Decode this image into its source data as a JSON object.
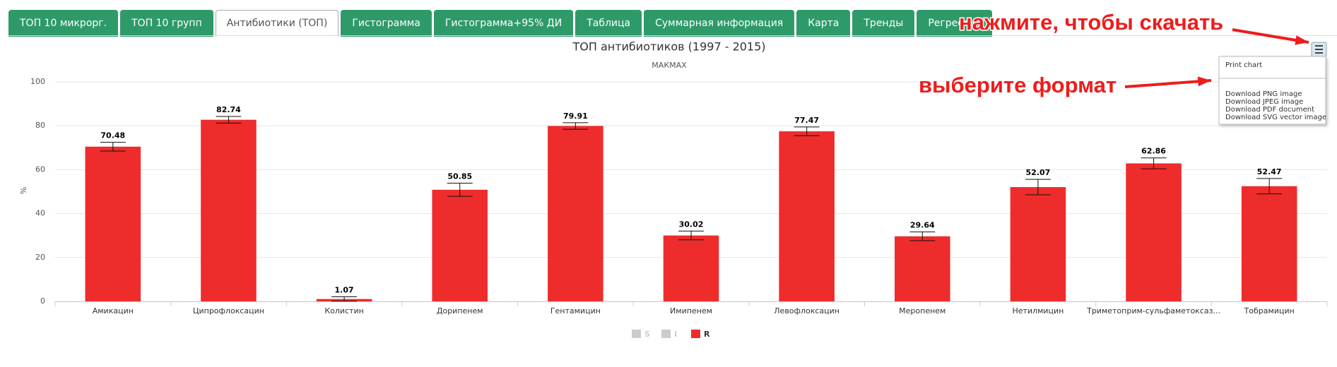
{
  "tabs": {
    "labels": [
      "ТОП 10 микрорг.",
      "ТОП 10 групп",
      "Антибиотики (ТОП)",
      "Гистограмма",
      "Гистограмма+95% ДИ",
      "Таблица",
      "Суммарная информация",
      "Карта",
      "Тренды",
      "Регрессия"
    ],
    "active": 2
  },
  "chart_data": {
    "type": "bar",
    "title": "ТОП антибиотиков (1997 - 2015)",
    "subtitle": "МАКМАХ",
    "y_label": "%",
    "categories": [
      "Амикацин",
      "Ципрофлоксацин",
      "Колистин",
      "Дорипенем",
      "Гентамицин",
      "Имипенем",
      "Левофлоксацин",
      "Меропенем",
      "Нетилмицин",
      "Триметоприм-сульфаметоксаз...",
      "Тобрамицин"
    ],
    "series": [
      {
        "name": "S",
        "color": "#cccccc",
        "visible": false
      },
      {
        "name": "I",
        "color": "#cccccc",
        "visible": false
      },
      {
        "name": "R",
        "color": "#ee2c2c",
        "visible": true,
        "values": [
          70.48,
          82.74,
          1.07,
          50.85,
          79.91,
          30.02,
          77.47,
          29.64,
          52.07,
          62.86,
          52.47
        ],
        "errors": [
          2,
          1.5,
          1,
          3,
          1.5,
          2,
          2,
          2,
          3.5,
          2.5,
          3.5
        ]
      }
    ],
    "ylim": [
      0,
      100
    ],
    "yticks": [
      0,
      20,
      40,
      60,
      80,
      100
    ],
    "grid": true
  },
  "menu": {
    "items": [
      "Print chart",
      "Download PNG image",
      "Download JPEG image",
      "Download PDF document",
      "Download SVG vector image"
    ]
  },
  "annotations": [
    "нажмите, чтобы скачать",
    "выберите формат"
  ]
}
